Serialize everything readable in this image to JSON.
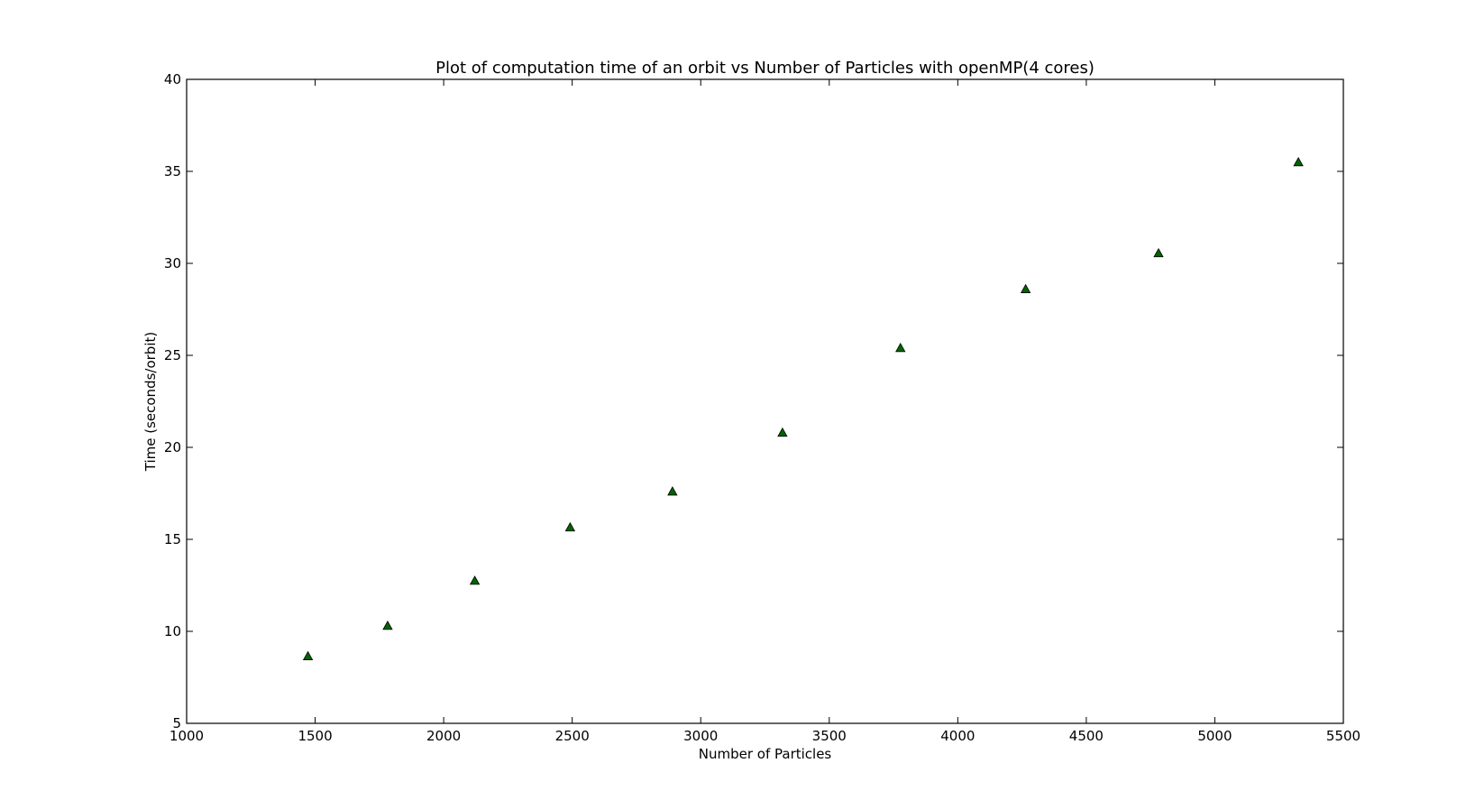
{
  "chart_data": {
    "type": "scatter",
    "title": "Plot of computation time of an orbit vs Number of Particles with openMP(4 cores)",
    "xlabel": "Number of Particles",
    "ylabel": "Time (seconds/orbit)",
    "xlim": [
      1000,
      5500
    ],
    "ylim": [
      5,
      40
    ],
    "xticks": [
      1000,
      1500,
      2000,
      2500,
      3000,
      3500,
      4000,
      4500,
      5000,
      5500
    ],
    "yticks": [
      5,
      10,
      15,
      20,
      25,
      30,
      35,
      40
    ],
    "grid": false,
    "marker": "triangle-up",
    "marker_color": "#006400",
    "series": [
      {
        "x": [
          1472,
          1782,
          2121,
          2492,
          2890,
          3318,
          3777,
          4264,
          4781,
          5325
        ],
        "y": [
          8.65,
          10.3,
          12.75,
          15.65,
          17.6,
          20.8,
          25.4,
          28.6,
          30.55,
          35.5
        ]
      }
    ]
  }
}
